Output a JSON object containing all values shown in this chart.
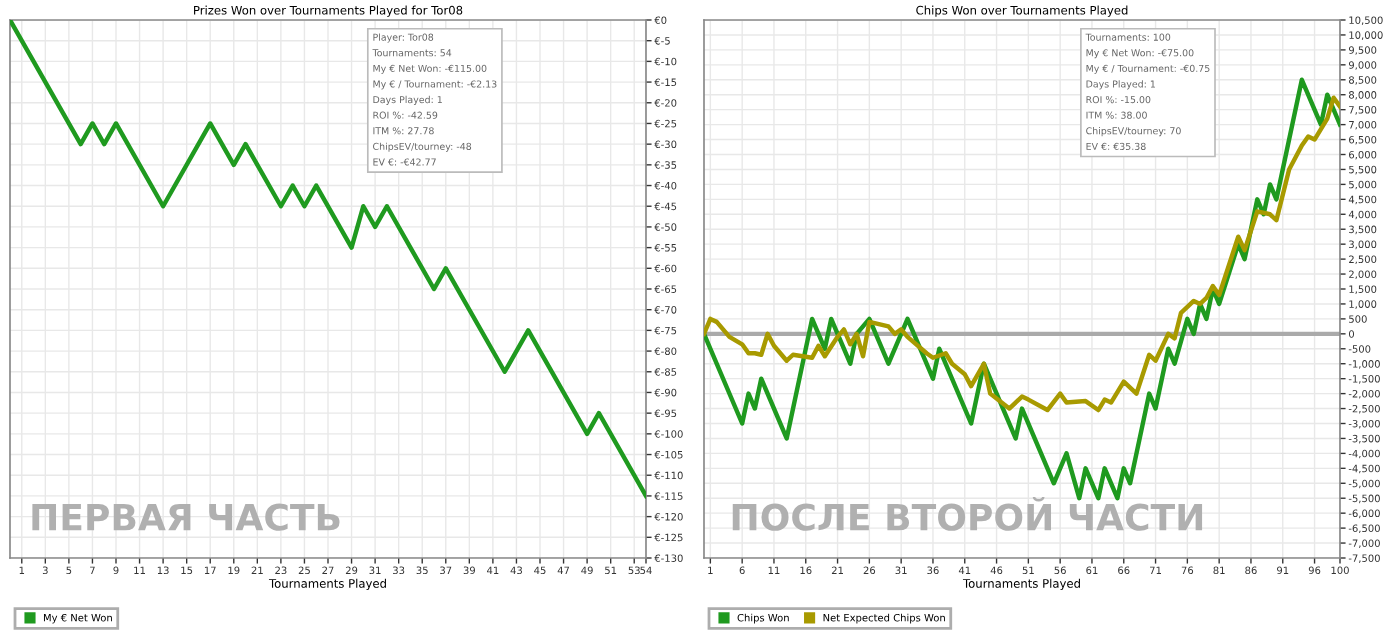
{
  "chart_data": [
    {
      "type": "line",
      "title": "Prizes Won over Tournaments Played for Tor08",
      "xlabel": "Tournaments Played",
      "series": [
        {
          "name": "My € Net Won",
          "color": "#1f9a1f",
          "x": [
            0,
            6,
            7,
            8,
            9,
            13,
            17,
            19,
            20,
            23,
            24,
            25,
            26,
            29,
            30,
            31,
            32,
            36,
            37,
            42,
            44,
            49,
            50,
            54
          ],
          "values": [
            0,
            -30,
            -25,
            -30,
            -25,
            -45,
            -25,
            -35,
            -30,
            -45,
            -40,
            -45,
            -40,
            -55,
            -45,
            -50,
            -45,
            -65,
            -60,
            -85,
            -75,
            -100,
            -95,
            -115
          ]
        }
      ],
      "xlim": [
        0,
        54
      ],
      "xticks": [
        1,
        3,
        5,
        7,
        9,
        11,
        13,
        15,
        17,
        19,
        21,
        23,
        25,
        27,
        29,
        31,
        33,
        35,
        37,
        39,
        41,
        43,
        45,
        47,
        49,
        51,
        53,
        54
      ],
      "ylim": [
        -130,
        0
      ],
      "yticks": [
        {
          "value": 0,
          "label": "€0"
        },
        {
          "value": -5,
          "label": "€-5"
        },
        {
          "value": -10,
          "label": "€-10"
        },
        {
          "value": -15,
          "label": "€-15"
        },
        {
          "value": -20,
          "label": "€-20"
        },
        {
          "value": -25,
          "label": "€-25"
        },
        {
          "value": -30,
          "label": "€-30"
        },
        {
          "value": -35,
          "label": "€-35"
        },
        {
          "value": -40,
          "label": "€-40"
        },
        {
          "value": -45,
          "label": "€-45"
        },
        {
          "value": -50,
          "label": "€-50"
        },
        {
          "value": -55,
          "label": "€-55"
        },
        {
          "value": -60,
          "label": "€-60"
        },
        {
          "value": -65,
          "label": "€-65"
        },
        {
          "value": -70,
          "label": "€-70"
        },
        {
          "value": -75,
          "label": "€-75"
        },
        {
          "value": -80,
          "label": "€-80"
        },
        {
          "value": -85,
          "label": "€-85"
        },
        {
          "value": -90,
          "label": "€-90"
        },
        {
          "value": -95,
          "label": "€-95"
        },
        {
          "value": -100,
          "label": "€-100"
        },
        {
          "value": -105,
          "label": "€-105"
        },
        {
          "value": -110,
          "label": "€-110"
        },
        {
          "value": -115,
          "label": "€-115"
        },
        {
          "value": -120,
          "label": "€-120"
        },
        {
          "value": -125,
          "label": "€-125"
        },
        {
          "value": -130,
          "label": "€-130"
        }
      ],
      "grid": true,
      "legend": "bottom left",
      "marker": "none",
      "line_style": "solid",
      "annotations": [
        "Player: Tor08\nTournaments: 54\nMy € Net Won: -€115.00\nMy € / Tournament: -€2.13\nDays Played: 1\nROI %: -42.59\nITM %: 27.78\nChipsEV/tourney: -48\nEV €: -€42.77",
        "ПЕРВАЯ ЧАСТЬ"
      ]
    },
    {
      "type": "line",
      "title": "Chips Won over Tournaments Played",
      "xlabel": "Tournaments Played",
      "series": [
        {
          "name": "Chips Won",
          "color": "#1f9a1f",
          "x": [
            0,
            6,
            7,
            8,
            9,
            13,
            17,
            19,
            20,
            23,
            24,
            26,
            29,
            31,
            32,
            36,
            37,
            42,
            44,
            49,
            50,
            55,
            57,
            59,
            60,
            62,
            63,
            65,
            66,
            67,
            70,
            71,
            73,
            74,
            76,
            77,
            78,
            79,
            80,
            81,
            84,
            85,
            87,
            88,
            89,
            90,
            94,
            97,
            98,
            100
          ],
          "values": [
            0,
            -3000,
            -2000,
            -2500,
            -1500,
            -3500,
            500,
            -500,
            500,
            -1000,
            0,
            500,
            -1000,
            0,
            500,
            -1500,
            -500,
            -3000,
            -1000,
            -3500,
            -2500,
            -5000,
            -4000,
            -5500,
            -4500,
            -5500,
            -4500,
            -5500,
            -4500,
            -5000,
            -2000,
            -2500,
            -500,
            -1000,
            500,
            0,
            1000,
            500,
            1500,
            1000,
            3000,
            2500,
            4500,
            4000,
            5000,
            4500,
            8500,
            7000,
            8000,
            7000
          ]
        },
        {
          "name": "Net Expected Chips Won",
          "color": "#a89a00",
          "x": [
            0,
            1,
            2,
            4,
            6,
            7,
            8,
            9,
            10,
            11,
            13,
            14,
            17,
            18,
            19,
            21,
            22,
            23,
            24,
            25,
            26,
            29,
            30,
            31,
            32,
            35,
            36,
            38,
            39,
            41,
            42,
            44,
            45,
            48,
            50,
            51,
            54,
            56,
            57,
            60,
            62,
            63,
            64,
            66,
            68,
            70,
            71,
            73,
            74,
            75,
            76,
            77,
            78,
            79,
            80,
            81,
            84,
            85,
            87,
            89,
            90,
            92,
            94,
            95,
            96,
            98,
            99,
            100
          ],
          "values": [
            0,
            500,
            400,
            -100,
            -350,
            -650,
            -650,
            -700,
            0,
            -400,
            -900,
            -700,
            -800,
            -400,
            -750,
            -100,
            150,
            -350,
            0,
            -750,
            400,
            250,
            0,
            150,
            -100,
            -650,
            -800,
            -650,
            -1000,
            -1350,
            -1750,
            -1000,
            -2000,
            -2500,
            -2100,
            -2200,
            -2550,
            -2000,
            -2300,
            -2250,
            -2550,
            -2200,
            -2300,
            -1600,
            -2000,
            -700,
            -900,
            0,
            -150,
            700,
            900,
            1100,
            1000,
            1200,
            1600,
            1300,
            3250,
            2800,
            4100,
            4000,
            3800,
            5500,
            6300,
            6600,
            6500,
            7200,
            7900,
            7600
          ]
        }
      ],
      "xlim": [
        0,
        100
      ],
      "xticks": [
        1,
        6,
        11,
        16,
        21,
        26,
        31,
        36,
        41,
        46,
        51,
        56,
        61,
        66,
        71,
        76,
        81,
        86,
        91,
        96,
        100
      ],
      "ylim": [
        -7500,
        10500
      ],
      "yticks": [
        {
          "value": 10500,
          "label": "10,500"
        },
        {
          "value": 10000,
          "label": "10,000"
        },
        {
          "value": 9500,
          "label": "9,500"
        },
        {
          "value": 9000,
          "label": "9,000"
        },
        {
          "value": 8500,
          "label": "8,500"
        },
        {
          "value": 8000,
          "label": "8,000"
        },
        {
          "value": 7500,
          "label": "7,500"
        },
        {
          "value": 7000,
          "label": "7,000"
        },
        {
          "value": 6500,
          "label": "6,500"
        },
        {
          "value": 6000,
          "label": "6,000"
        },
        {
          "value": 5500,
          "label": "5,500"
        },
        {
          "value": 5000,
          "label": "5,000"
        },
        {
          "value": 4500,
          "label": "4,500"
        },
        {
          "value": 4000,
          "label": "4,000"
        },
        {
          "value": 3500,
          "label": "3,500"
        },
        {
          "value": 3000,
          "label": "3,000"
        },
        {
          "value": 2500,
          "label": "2,500"
        },
        {
          "value": 2000,
          "label": "2,000"
        },
        {
          "value": 1500,
          "label": "1,500"
        },
        {
          "value": 1000,
          "label": "1,000"
        },
        500,
        0,
        {
          "value": -500,
          "label": "-500"
        },
        {
          "value": -1000,
          "label": "-1,000"
        },
        {
          "value": -1500,
          "label": "-1,500"
        },
        {
          "value": -2000,
          "label": "-2,000"
        },
        {
          "value": -2500,
          "label": "-2,500"
        },
        {
          "value": -3000,
          "label": "-3,000"
        },
        {
          "value": -3500,
          "label": "-3,500"
        },
        {
          "value": -4000,
          "label": "-4,000"
        },
        {
          "value": -4500,
          "label": "-4,500"
        },
        {
          "value": -5000,
          "label": "-5,000"
        },
        {
          "value": -5500,
          "label": "-5,500"
        },
        {
          "value": -6000,
          "label": "-6,000"
        },
        {
          "value": -6500,
          "label": "-6,500"
        },
        {
          "value": -7000,
          "label": "-7,000"
        },
        {
          "value": -7500,
          "label": "-7,500"
        }
      ],
      "ref_lines": [
        {
          "axis": "y",
          "value": 0,
          "color": "#aaaaaa"
        }
      ],
      "grid": true,
      "legend": "bottom left",
      "marker": "none",
      "line_style": "solid",
      "annotations": [
        "Tournaments: 100\nMy € Net Won: -€75.00\nMy € / Tournament: -€0.75\nDays Played: 1\nROI %: -15.00\nITM %: 38.00\nChipsEV/tourney: 70\nEV €: €35.38",
        "ПОСЛЕ ВТОРОЙ ЧАСТИ"
      ]
    }
  ]
}
